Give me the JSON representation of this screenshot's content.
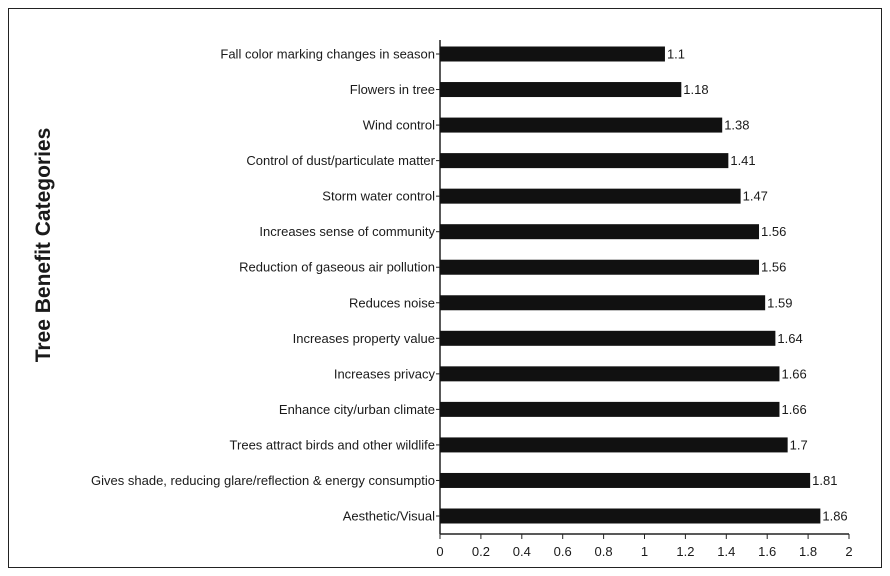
{
  "chart_data": {
    "type": "bar",
    "orientation": "horizontal",
    "title": "",
    "xlabel": "",
    "ylabel": "Tree Benefit Categories",
    "xlim": [
      0,
      2
    ],
    "xticks": [
      "0",
      "0.2",
      "0.4",
      "0.6",
      "0.8",
      "1",
      "1.2",
      "1.4",
      "1.6",
      "1.8",
      "2"
    ],
    "grid": false,
    "legend": "none",
    "bar_color": "#111111",
    "categories": [
      "Fall color marking changes in season",
      "Flowers in tree",
      "Wind control",
      "Control of dust/particulate matter",
      "Storm water control",
      "Increases sense of community",
      "Reduction of gaseous air pollution",
      "Reduces noise",
      "Increases property value",
      "Increases privacy",
      "Enhance city/urban climate",
      "Trees attract birds and other wildlife",
      "Gives shade, reducing glare/reflection & energy consumptio",
      "Aesthetic/Visual"
    ],
    "values": [
      1.1,
      1.18,
      1.38,
      1.41,
      1.47,
      1.56,
      1.56,
      1.59,
      1.64,
      1.66,
      1.66,
      1.7,
      1.81,
      1.86
    ],
    "value_labels": [
      "1.1",
      "1.18",
      "1.38",
      "1.41",
      "1.47",
      "1.56",
      "1.56",
      "1.59",
      "1.64",
      "1.66",
      "1.66",
      "1.7",
      "1.81",
      "1.86"
    ]
  }
}
